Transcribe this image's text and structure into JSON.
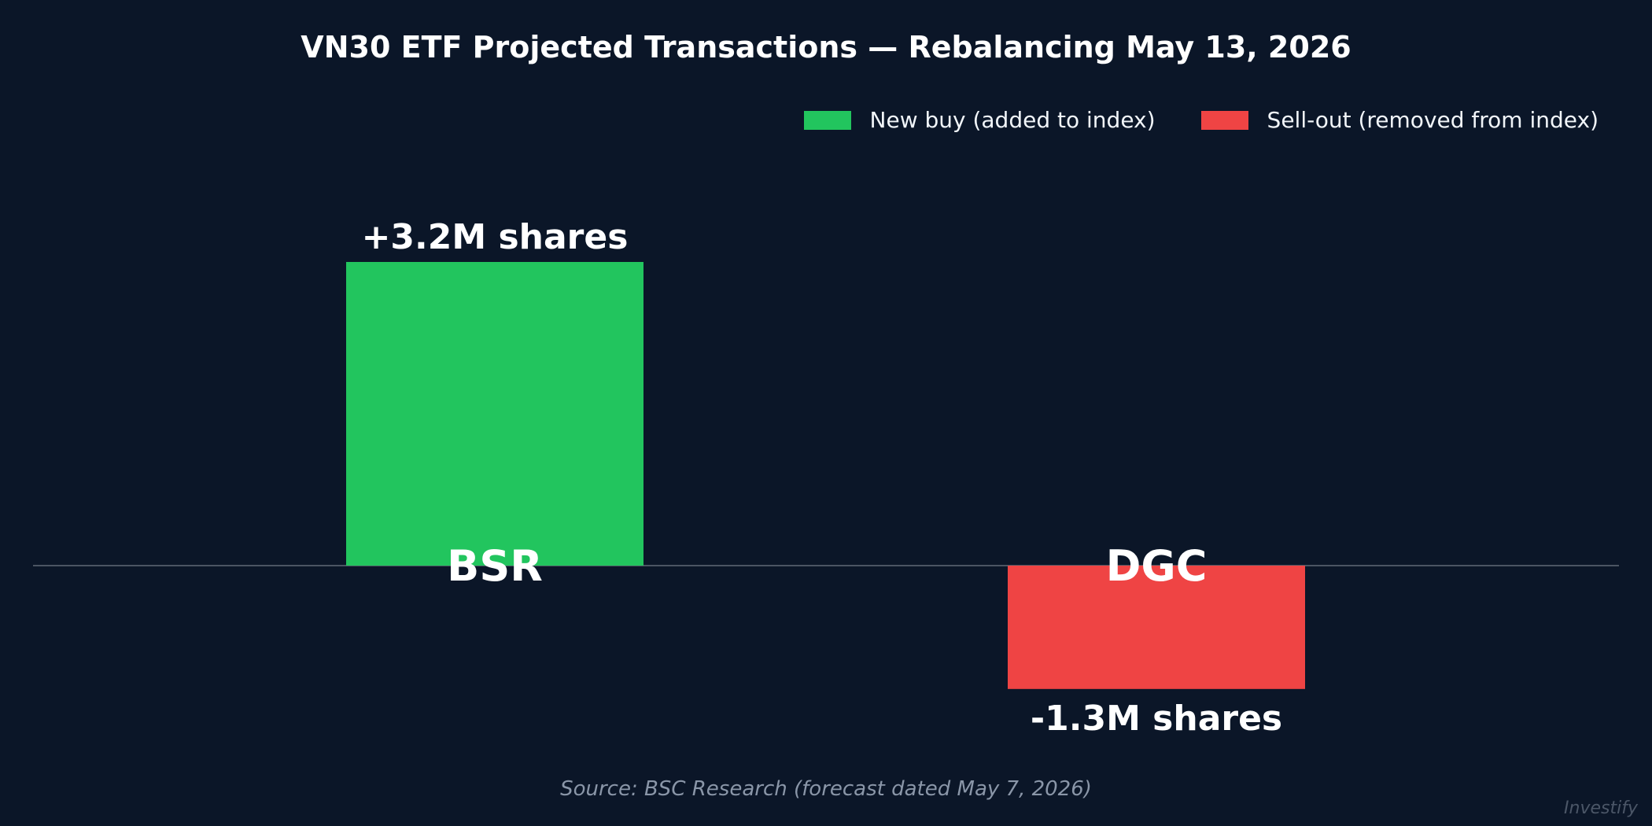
{
  "chart_data": {
    "type": "bar",
    "title": "VN30 ETF Projected Transactions — Rebalancing May 13, 2026",
    "categories": [
      "BSR",
      "DGC"
    ],
    "values": [
      3.2,
      -1.3
    ],
    "unit": "M shares",
    "data_labels": [
      "+3.2M shares",
      "-1.3M shares"
    ],
    "series": [
      {
        "name": "New buy (added to index)",
        "category": "BSR",
        "value": 3.2,
        "color": "#22c55e"
      },
      {
        "name": "Sell-out (removed from index)",
        "category": "DGC",
        "value": -1.3,
        "color": "#ef4444"
      }
    ],
    "ylim": [
      -2.0,
      4.5
    ],
    "grid": false,
    "zero_line": true,
    "legend_position": "top-right",
    "background": "#0b1628",
    "source": "Source: BSC Research (forecast dated May 7, 2026)",
    "watermark": "Investify"
  }
}
